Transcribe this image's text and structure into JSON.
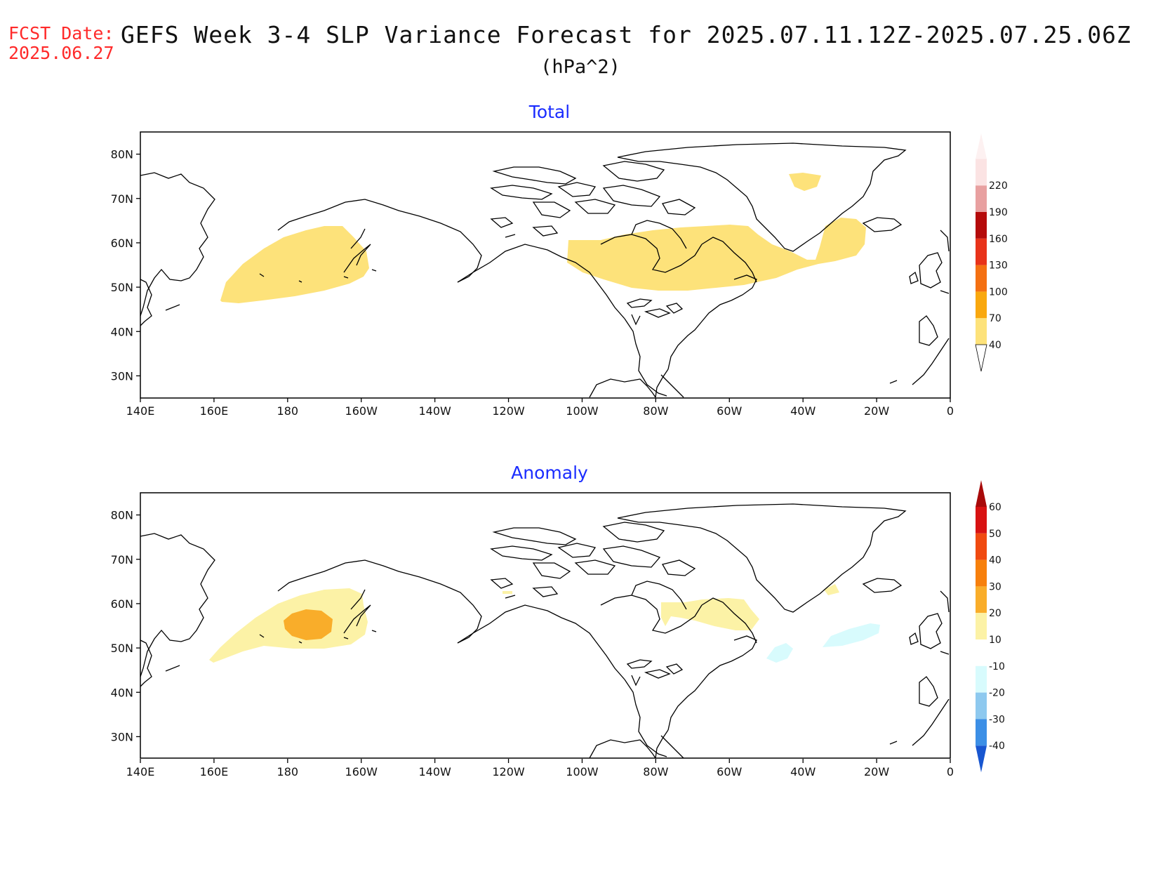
{
  "header": {
    "fcst_label": "FCST Date:",
    "fcst_date": "2025.06.27",
    "title": "GEFS Week 3-4 SLP Variance Forecast for 2025.07.11.12Z-2025.07.25.06Z",
    "units": "(hPa^2)"
  },
  "map_axes": {
    "lon_ticks": [
      "140E",
      "160E",
      "180",
      "160W",
      "140W",
      "120W",
      "100W",
      "80W",
      "60W",
      "40W",
      "20W",
      "0"
    ],
    "lat_ticks": [
      "80N",
      "70N",
      "60N",
      "50N",
      "40N",
      "30N"
    ],
    "lon_range": [
      "140E",
      "0"
    ],
    "lat_range": [
      25,
      85
    ]
  },
  "panels": [
    {
      "title": "Total",
      "colorbar": {
        "labels": [
          "40",
          "70",
          "100",
          "130",
          "160",
          "190",
          "220"
        ],
        "colors": [
          "#fde27a",
          "#f9a80e",
          "#f47012",
          "#e8331a",
          "#b50b0b",
          "#e8a0a0",
          "#fbe3e3"
        ]
      },
      "regions": [
        {
          "name": "north-pacific-40-70"
        },
        {
          "name": "canada-north-atlantic-40-70"
        },
        {
          "name": "greenland-40-70"
        }
      ]
    },
    {
      "title": "Anomaly",
      "colorbar": {
        "labels": [
          "60",
          "50",
          "40",
          "30",
          "20",
          "10",
          "-10",
          "-20",
          "-30",
          "-40"
        ],
        "colors": [
          "#d81212",
          "#f04a10",
          "#f7800c",
          "#f9ad2a",
          "#fcf2a6",
          "#ffffff",
          "#d8fbfd",
          "#8ec9ef",
          "#3c8fe6",
          "#1856d0"
        ]
      },
      "regions": [
        {
          "name": "north-pacific-10-20"
        },
        {
          "name": "north-pacific-20-30"
        },
        {
          "name": "hudson-bay-10-20"
        },
        {
          "name": "north-atlantic-minus10-minus20"
        }
      ]
    }
  ]
}
